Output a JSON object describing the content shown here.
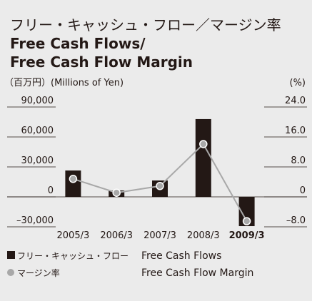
{
  "chart_data": {
    "type": "bar_line",
    "title": "フリー・キャッシュ・フロー／マージン率",
    "title_en": [
      "Free Cash Flows/",
      "Free Cash Flow Margin"
    ],
    "ylabel": "（百万円）(Millions of Yen)",
    "y2label": "(%)",
    "categories": [
      "2005/3",
      "2006/3",
      "2007/3",
      "2008/3",
      "2009/3"
    ],
    "bold_last_category": true,
    "series": [
      {
        "name": "フリー・キャッシュ・フロー",
        "name_en": "Free Cash Flows",
        "type": "bar",
        "color": "#231815",
        "values": [
          26400,
          6400,
          16400,
          77900,
          -29300
        ]
      },
      {
        "name": "マージン率",
        "name_en": "Free Cash Flow Margin",
        "type": "line",
        "axis": "y2",
        "color": "#a8a8a8",
        "values": [
          4.8,
          1.1,
          2.9,
          14.1,
          -6.5
        ]
      }
    ],
    "ylim": [
      -30000,
      90000
    ],
    "yticks": [
      {
        "value": -30000,
        "label": "–30,000"
      },
      0,
      {
        "value": 30000,
        "label": "30,000"
      },
      {
        "value": 60000,
        "label": "60,000"
      },
      {
        "value": 90000,
        "label": "90,000"
      }
    ],
    "y2lim": [
      -8,
      24
    ],
    "y2ticks": [
      {
        "value": -8,
        "label": "–8.0"
      },
      0,
      {
        "value": 8,
        "label": "8.0"
      },
      {
        "value": 16,
        "label": "16.0"
      },
      {
        "value": 24,
        "label": "24.0"
      }
    ]
  }
}
